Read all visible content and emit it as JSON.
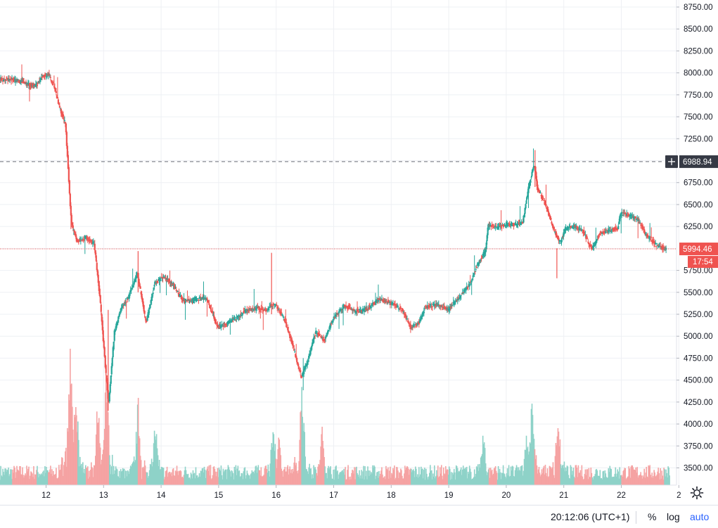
{
  "chart_data": {
    "type": "candlestick",
    "symbol_timeframe": "intraday",
    "x_axis_labels": [
      "12",
      "13",
      "14",
      "15",
      "16",
      "17",
      "18",
      "19",
      "20",
      "21",
      "22",
      "2"
    ],
    "y_axis_labels": [
      "8750.00",
      "8500.00",
      "8250.00",
      "8000.00",
      "7750.00",
      "7500.00",
      "7250.00",
      "7000.00",
      "6750.00",
      "6500.00",
      "6250.00",
      "6000.00",
      "5750.00",
      "5500.00",
      "5250.00",
      "5000.00",
      "4750.00",
      "4500.00",
      "4250.00",
      "4000.00",
      "3750.00",
      "3500.00"
    ],
    "ylim": [
      3360,
      8800
    ],
    "grid": true,
    "crosshair_price": "6988.94",
    "last_price": "5994.46",
    "countdown": "17:54",
    "colors": {
      "up": "#26a69a",
      "down": "#ef5350",
      "volume_up": "#8ed2c8",
      "volume_down": "#f5a3a3",
      "grid": "#eef0f4",
      "axis_text": "#131722",
      "price_label": "#ef5350",
      "crosshair_label": "#363a45"
    },
    "price_path": [
      [
        11.42,
        7920
      ],
      [
        11.55,
        7900
      ],
      [
        11.7,
        7870
      ],
      [
        11.85,
        7860
      ],
      [
        11.95,
        7960
      ],
      [
        12.05,
        7980
      ],
      [
        12.15,
        7850
      ],
      [
        12.25,
        7600
      ],
      [
        12.35,
        7420
      ],
      [
        12.45,
        6300
      ],
      [
        12.55,
        6080
      ],
      [
        12.7,
        6130
      ],
      [
        12.85,
        6050
      ],
      [
        12.95,
        5420
      ],
      [
        13.05,
        4600
      ],
      [
        13.1,
        4230
      ],
      [
        13.2,
        5050
      ],
      [
        13.3,
        5300
      ],
      [
        13.45,
        5450
      ],
      [
        13.6,
        5720
      ],
      [
        13.75,
        5150
      ],
      [
        13.9,
        5600
      ],
      [
        14.05,
        5680
      ],
      [
        14.2,
        5600
      ],
      [
        14.4,
        5400
      ],
      [
        14.6,
        5420
      ],
      [
        14.8,
        5430
      ],
      [
        15.0,
        5100
      ],
      [
        15.15,
        5150
      ],
      [
        15.3,
        5200
      ],
      [
        15.5,
        5300
      ],
      [
        15.7,
        5320
      ],
      [
        15.85,
        5280
      ],
      [
        15.9,
        5350
      ],
      [
        16.0,
        5350
      ],
      [
        16.15,
        5200
      ],
      [
        16.3,
        4900
      ],
      [
        16.45,
        4530
      ],
      [
        16.55,
        4700
      ],
      [
        16.7,
        5050
      ],
      [
        16.85,
        4950
      ],
      [
        17.0,
        5200
      ],
      [
        17.2,
        5350
      ],
      [
        17.4,
        5280
      ],
      [
        17.6,
        5310
      ],
      [
        17.8,
        5420
      ],
      [
        18.0,
        5380
      ],
      [
        18.2,
        5300
      ],
      [
        18.35,
        5100
      ],
      [
        18.5,
        5150
      ],
      [
        18.6,
        5330
      ],
      [
        18.8,
        5360
      ],
      [
        19.0,
        5300
      ],
      [
        19.2,
        5450
      ],
      [
        19.4,
        5620
      ],
      [
        19.5,
        5800
      ],
      [
        19.65,
        5980
      ],
      [
        19.7,
        6270
      ],
      [
        19.85,
        6240
      ],
      [
        20.0,
        6270
      ],
      [
        20.15,
        6270
      ],
      [
        20.3,
        6300
      ],
      [
        20.4,
        6700
      ],
      [
        20.5,
        6960
      ],
      [
        20.55,
        6700
      ],
      [
        20.7,
        6490
      ],
      [
        20.85,
        6190
      ],
      [
        20.95,
        6070
      ],
      [
        21.05,
        6230
      ],
      [
        21.2,
        6250
      ],
      [
        21.35,
        6190
      ],
      [
        21.5,
        5990
      ],
      [
        21.65,
        6180
      ],
      [
        21.8,
        6200
      ],
      [
        21.95,
        6230
      ],
      [
        22.0,
        6400
      ],
      [
        22.15,
        6380
      ],
      [
        22.3,
        6330
      ],
      [
        22.45,
        6150
      ],
      [
        22.6,
        6050
      ],
      [
        22.75,
        5994
      ]
    ],
    "volume_spikes": [
      [
        12.42,
        1630
      ],
      [
        12.52,
        1200
      ],
      [
        12.9,
        1000
      ],
      [
        13.05,
        1400
      ],
      [
        13.6,
        1000
      ],
      [
        13.9,
        780
      ],
      [
        15.95,
        800
      ],
      [
        16.05,
        600
      ],
      [
        16.45,
        1320
      ],
      [
        16.8,
        700
      ],
      [
        19.6,
        650
      ],
      [
        20.35,
        650
      ],
      [
        20.45,
        1100
      ],
      [
        20.9,
        900
      ]
    ],
    "volume_max": 1630
  },
  "bottom_bar": {
    "clock": "20:12:06 (UTC+1)",
    "percent_label": "%",
    "log_label": "log",
    "auto_label": "auto"
  },
  "icons": {
    "settings": "gear-icon",
    "crosshair": "plus-icon"
  }
}
